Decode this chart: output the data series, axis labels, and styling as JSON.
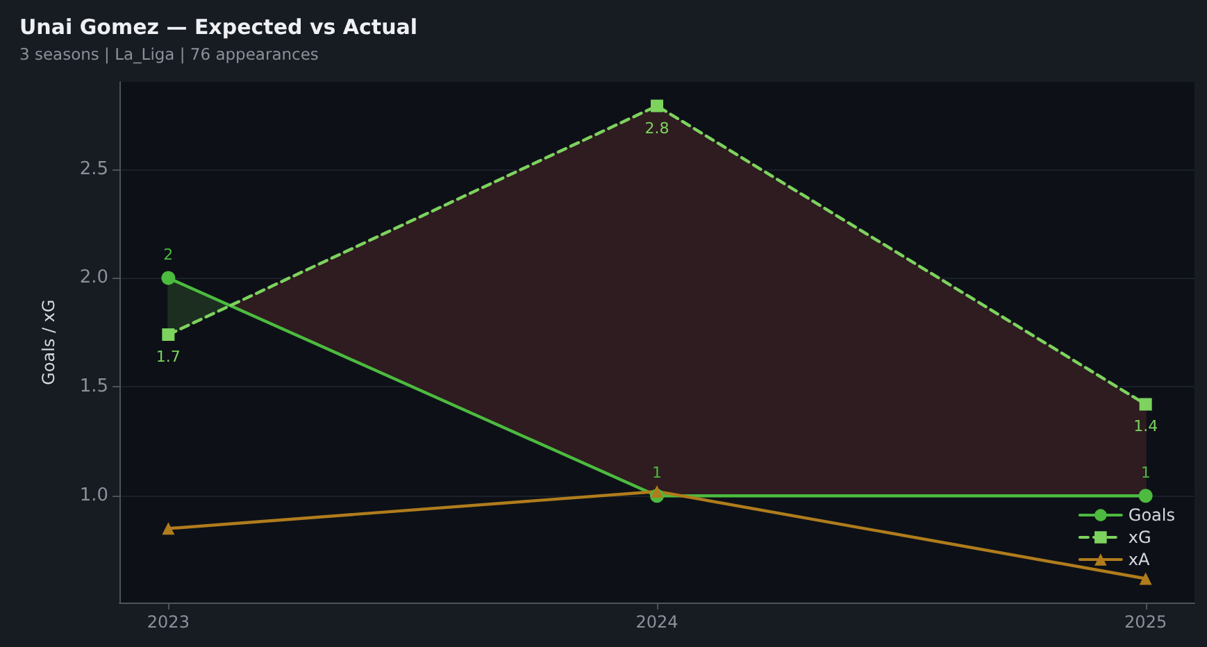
{
  "chart_data": {
    "type": "line",
    "title": "Unai Gomez — Expected vs Actual",
    "subtitle": "3 seasons | La_Liga | 76 appearances",
    "ylabel": "Goals / xG",
    "x": [
      2023,
      2024,
      2025
    ],
    "xlim": [
      2022.9,
      2025.1
    ],
    "xticks": [
      2023,
      2024,
      2025
    ],
    "ylim": [
      0.51,
      2.9
    ],
    "yticks": [
      {
        "value": 1,
        "label": "1.0"
      },
      1.5,
      {
        "value": 2,
        "label": "2.0"
      },
      2.5
    ],
    "grid": "y",
    "legend": "bottom right",
    "series": [
      {
        "name": "Goals",
        "color": "#4cbb3f",
        "values": [
          2,
          1,
          1
        ],
        "marker": "circle",
        "line_style": "solid",
        "value_labels": [
          "2",
          "1",
          "1"
        ]
      },
      {
        "name": "xG",
        "color": "#7dd35e",
        "values": [
          1.74,
          2.79,
          1.42
        ],
        "marker": "square",
        "line_style": "dashed",
        "value_labels": [
          "1.7",
          "2.8",
          "1.4"
        ],
        "lower": [
          2,
          1,
          1
        ],
        "upper": [
          1.74,
          2.79,
          1.42
        ]
      },
      {
        "name": "xA",
        "color": "#b07c1c",
        "values": [
          0.85,
          1.02,
          0.62
        ],
        "marker": "triangle",
        "line_style": "solid"
      }
    ]
  }
}
